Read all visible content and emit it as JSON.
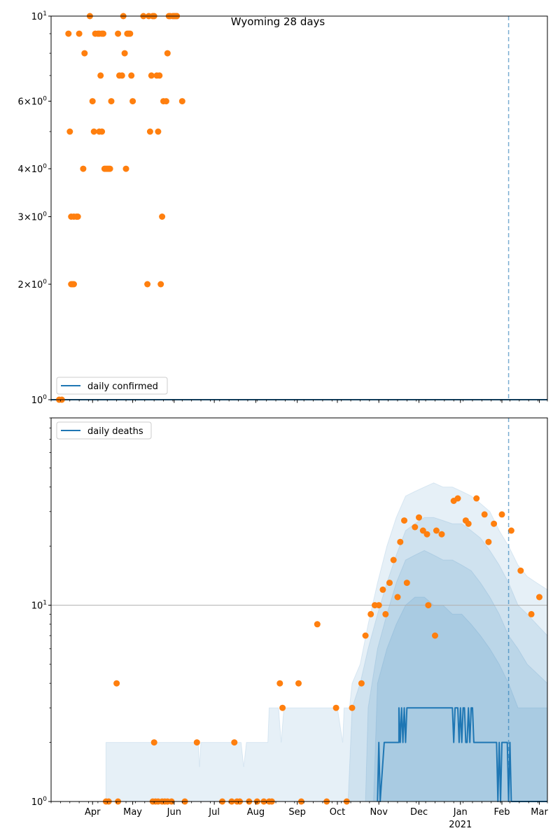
{
  "title": "Wyoming 28 days",
  "colors": {
    "line": "#1f77b4",
    "dots": "#ff7f0e",
    "band": "#1f77b4",
    "vline": "#1f77b4",
    "hline": "#b0b0b0"
  },
  "chart_data": [
    {
      "type": "scatter",
      "name": "top-panel",
      "yscale": "log",
      "ylim": [
        1,
        10
      ],
      "xlim": [
        "2020-03-01",
        "2021-03-07"
      ],
      "ytick_values": [
        1,
        2,
        3,
        4,
        6,
        10
      ],
      "ytick_labels": [
        "10^0",
        "2×10^0",
        "3×10^0",
        "4×10^0",
        "6×10^0",
        "10^1"
      ],
      "legend": {
        "label": "daily confirmed",
        "loc": "lower-left"
      },
      "vline_date": "2021-02-06",
      "line": [
        [
          "2020-03-01",
          1
        ],
        [
          "2021-03-07",
          1
        ]
      ],
      "points": [
        [
          "2020-03-07",
          1
        ],
        [
          "2020-03-09",
          1
        ],
        [
          "2020-03-14",
          9
        ],
        [
          "2020-03-15",
          5
        ],
        [
          "2020-03-16",
          2
        ],
        [
          "2020-03-16",
          3
        ],
        [
          "2020-03-17",
          2
        ],
        [
          "2020-03-18",
          3
        ],
        [
          "2020-03-18",
          2
        ],
        [
          "2020-03-20",
          3
        ],
        [
          "2020-03-21",
          3
        ],
        [
          "2020-03-22",
          9
        ],
        [
          "2020-03-25",
          4
        ],
        [
          "2020-03-26",
          8
        ],
        [
          "2020-03-30",
          10
        ],
        [
          "2020-04-01",
          6
        ],
        [
          "2020-04-02",
          5
        ],
        [
          "2020-04-03",
          9
        ],
        [
          "2020-04-05",
          9
        ],
        [
          "2020-04-06",
          5
        ],
        [
          "2020-04-06",
          9
        ],
        [
          "2020-04-07",
          7
        ],
        [
          "2020-04-08",
          5
        ],
        [
          "2020-04-08",
          9
        ],
        [
          "2020-04-09",
          9
        ],
        [
          "2020-04-10",
          4
        ],
        [
          "2020-04-11",
          4
        ],
        [
          "2020-04-12",
          4
        ],
        [
          "2020-04-13",
          4
        ],
        [
          "2020-04-14",
          4
        ],
        [
          "2020-04-15",
          6
        ],
        [
          "2020-04-20",
          9
        ],
        [
          "2020-04-21",
          7
        ],
        [
          "2020-04-23",
          7
        ],
        [
          "2020-04-24",
          10
        ],
        [
          "2020-04-25",
          8
        ],
        [
          "2020-04-26",
          4
        ],
        [
          "2020-04-27",
          9
        ],
        [
          "2020-04-28",
          9
        ],
        [
          "2020-04-29",
          9
        ],
        [
          "2020-04-30",
          7
        ],
        [
          "2020-05-01",
          6
        ],
        [
          "2020-05-09",
          10
        ],
        [
          "2020-05-12",
          2
        ],
        [
          "2020-05-13",
          10
        ],
        [
          "2020-05-14",
          5
        ],
        [
          "2020-05-15",
          7
        ],
        [
          "2020-05-16",
          10
        ],
        [
          "2020-05-17",
          10
        ],
        [
          "2020-05-19",
          7
        ],
        [
          "2020-05-20",
          5
        ],
        [
          "2020-05-21",
          7
        ],
        [
          "2020-05-22",
          2
        ],
        [
          "2020-05-23",
          3
        ],
        [
          "2020-05-24",
          6
        ],
        [
          "2020-05-26",
          6
        ],
        [
          "2020-05-27",
          8
        ],
        [
          "2020-05-28",
          10
        ],
        [
          "2020-05-29",
          10
        ],
        [
          "2020-05-31",
          10
        ],
        [
          "2020-06-01",
          10
        ],
        [
          "2020-06-02",
          10
        ],
        [
          "2020-06-03",
          10
        ],
        [
          "2020-06-07",
          6
        ]
      ]
    },
    {
      "type": "line",
      "name": "bottom-panel",
      "yscale": "log",
      "ylim": [
        1,
        90
      ],
      "xlim": [
        "2020-03-01",
        "2021-03-07"
      ],
      "ytick_values": [
        1,
        10
      ],
      "ytick_labels": [
        "10^0",
        "10^1"
      ],
      "xtick_dates": [
        "2020-04-01",
        "2020-05-01",
        "2020-06-01",
        "2020-07-01",
        "2020-08-01",
        "2020-09-01",
        "2020-10-01",
        "2020-11-01",
        "2020-12-01",
        "2021-01-01",
        "2021-02-01",
        "2021-03-01"
      ],
      "xtick_labels": [
        "Apr",
        "May",
        "Jun",
        "Jul",
        "Aug",
        "Sep",
        "Oct",
        "Nov",
        "Dec",
        "Jan",
        "Feb",
        "Mar"
      ],
      "xtick_year_label": "2021",
      "legend": {
        "label": "daily deaths",
        "loc": "upper-left"
      },
      "vline_date": "2021-02-06",
      "hline_value": 10,
      "line": [
        [
          "2020-10-31",
          1
        ],
        [
          "2020-11-01",
          2
        ],
        [
          "2020-11-02",
          1
        ],
        [
          "2020-11-05",
          2
        ],
        [
          "2020-11-16",
          2
        ],
        [
          "2020-11-16",
          3
        ],
        [
          "2020-11-17",
          2
        ],
        [
          "2020-11-18",
          3
        ],
        [
          "2020-11-19",
          2
        ],
        [
          "2020-11-20",
          3
        ],
        [
          "2020-11-21",
          2
        ],
        [
          "2020-11-22",
          3
        ],
        [
          "2020-12-26",
          3
        ],
        [
          "2020-12-27",
          2
        ],
        [
          "2020-12-28",
          3
        ],
        [
          "2020-12-30",
          3
        ],
        [
          "2020-12-31",
          2
        ],
        [
          "2021-01-01",
          3
        ],
        [
          "2021-01-02",
          2
        ],
        [
          "2021-01-03",
          3
        ],
        [
          "2021-01-04",
          3
        ],
        [
          "2021-01-05",
          2
        ],
        [
          "2021-01-06",
          2
        ],
        [
          "2021-01-07",
          3
        ],
        [
          "2021-01-08",
          2
        ],
        [
          "2021-01-09",
          3
        ],
        [
          "2021-01-10",
          3
        ],
        [
          "2021-01-11",
          2
        ],
        [
          "2021-01-28",
          2
        ],
        [
          "2021-01-29",
          1
        ],
        [
          "2021-01-30",
          2
        ],
        [
          "2021-01-31",
          1
        ],
        [
          "2021-02-01",
          2
        ],
        [
          "2021-02-05",
          2
        ],
        [
          "2021-02-06",
          1
        ],
        [
          "2021-02-07",
          2
        ],
        [
          "2021-02-08",
          1
        ],
        [
          "2021-03-07",
          1
        ]
      ],
      "bands": [
        [
          [
            "2020-04-11",
            1
          ],
          [
            "2020-04-11",
            2
          ],
          [
            "2020-06-19",
            2
          ],
          [
            "2020-06-20",
            1.5
          ],
          [
            "2020-06-21",
            2
          ],
          [
            "2020-07-21",
            2
          ],
          [
            "2020-07-23",
            1.5
          ],
          [
            "2020-07-25",
            2
          ],
          [
            "2020-08-10",
            2
          ],
          [
            "2020-08-11",
            3
          ],
          [
            "2020-08-18",
            3
          ],
          [
            "2020-08-20",
            2
          ],
          [
            "2020-08-22",
            3
          ],
          [
            "2020-10-01",
            3
          ],
          [
            "2020-10-05",
            2
          ],
          [
            "2020-10-06",
            3
          ],
          [
            "2020-10-10",
            3
          ],
          [
            "2020-10-12",
            4
          ],
          [
            "2020-10-18",
            5
          ],
          [
            "2020-10-24",
            8
          ],
          [
            "2020-10-31",
            13
          ],
          [
            "2020-11-07",
            20
          ],
          [
            "2020-11-14",
            28
          ],
          [
            "2020-11-21",
            36
          ],
          [
            "2020-11-28",
            38
          ],
          [
            "2020-12-05",
            40
          ],
          [
            "2020-12-12",
            42
          ],
          [
            "2020-12-19",
            40
          ],
          [
            "2020-12-26",
            40
          ],
          [
            "2021-01-02",
            38
          ],
          [
            "2021-01-09",
            36
          ],
          [
            "2021-01-16",
            33
          ],
          [
            "2021-01-23",
            30
          ],
          [
            "2021-01-30",
            24
          ],
          [
            "2021-02-06",
            20
          ],
          [
            "2021-02-13",
            16
          ],
          [
            "2021-02-20",
            14
          ],
          [
            "2021-02-27",
            13
          ],
          [
            "2021-03-07",
            12
          ],
          [
            "2021-03-07",
            1
          ]
        ],
        [
          [
            "2020-10-09",
            1
          ],
          [
            "2020-10-12",
            3
          ],
          [
            "2020-10-18",
            4
          ],
          [
            "2020-10-24",
            6
          ],
          [
            "2020-10-31",
            9
          ],
          [
            "2020-11-07",
            13
          ],
          [
            "2020-11-14",
            18
          ],
          [
            "2020-11-21",
            24
          ],
          [
            "2020-11-28",
            26
          ],
          [
            "2020-12-05",
            28
          ],
          [
            "2020-12-12",
            28
          ],
          [
            "2020-12-19",
            27
          ],
          [
            "2020-12-26",
            26
          ],
          [
            "2021-01-02",
            26
          ],
          [
            "2021-01-09",
            24
          ],
          [
            "2021-01-16",
            22
          ],
          [
            "2021-01-23",
            19
          ],
          [
            "2021-01-30",
            16
          ],
          [
            "2021-02-06",
            13
          ],
          [
            "2021-02-13",
            10
          ],
          [
            "2021-02-20",
            9
          ],
          [
            "2021-02-27",
            8
          ],
          [
            "2021-03-07",
            7
          ],
          [
            "2021-03-07",
            1
          ]
        ],
        [
          [
            "2020-10-22",
            1
          ],
          [
            "2020-10-24",
            3
          ],
          [
            "2020-10-31",
            6
          ],
          [
            "2020-11-07",
            9
          ],
          [
            "2020-11-14",
            13
          ],
          [
            "2020-11-21",
            17
          ],
          [
            "2020-11-28",
            18
          ],
          [
            "2020-12-05",
            19
          ],
          [
            "2020-12-12",
            18
          ],
          [
            "2020-12-19",
            17
          ],
          [
            "2020-12-26",
            17
          ],
          [
            "2021-01-02",
            16
          ],
          [
            "2021-01-09",
            15
          ],
          [
            "2021-01-16",
            13
          ],
          [
            "2021-01-23",
            11
          ],
          [
            "2021-01-30",
            9
          ],
          [
            "2021-02-06",
            7
          ],
          [
            "2021-02-13",
            6
          ],
          [
            "2021-02-20",
            5
          ],
          [
            "2021-03-07",
            4
          ],
          [
            "2021-03-07",
            1
          ]
        ],
        [
          [
            "2020-10-28",
            1
          ],
          [
            "2020-10-31",
            4
          ],
          [
            "2020-11-07",
            6
          ],
          [
            "2020-11-14",
            8
          ],
          [
            "2020-11-21",
            10
          ],
          [
            "2020-11-28",
            11
          ],
          [
            "2020-12-05",
            11
          ],
          [
            "2020-12-12",
            10
          ],
          [
            "2020-12-19",
            10
          ],
          [
            "2020-12-26",
            9
          ],
          [
            "2021-01-02",
            9
          ],
          [
            "2021-01-09",
            8
          ],
          [
            "2021-01-16",
            7
          ],
          [
            "2021-01-23",
            6
          ],
          [
            "2021-01-30",
            5
          ],
          [
            "2021-02-06",
            4
          ],
          [
            "2021-02-13",
            3
          ],
          [
            "2021-02-20",
            3
          ],
          [
            "2021-03-07",
            3
          ],
          [
            "2021-03-07",
            1
          ]
        ]
      ],
      "points": [
        [
          "2020-04-11",
          1
        ],
        [
          "2020-04-13",
          1
        ],
        [
          "2020-04-19",
          4
        ],
        [
          "2020-04-20",
          1
        ],
        [
          "2020-05-16",
          1
        ],
        [
          "2020-05-17",
          2
        ],
        [
          "2020-05-18",
          1
        ],
        [
          "2020-05-20",
          1
        ],
        [
          "2020-05-23",
          1
        ],
        [
          "2020-05-25",
          1
        ],
        [
          "2020-05-27",
          1
        ],
        [
          "2020-05-30",
          1
        ],
        [
          "2020-06-09",
          1
        ],
        [
          "2020-06-18",
          2
        ],
        [
          "2020-07-07",
          1
        ],
        [
          "2020-07-14",
          1
        ],
        [
          "2020-07-16",
          2
        ],
        [
          "2020-07-18",
          1
        ],
        [
          "2020-07-20",
          1
        ],
        [
          "2020-07-27",
          1
        ],
        [
          "2020-08-02",
          1
        ],
        [
          "2020-08-07",
          1
        ],
        [
          "2020-08-11",
          1
        ],
        [
          "2020-08-13",
          1
        ],
        [
          "2020-08-19",
          4
        ],
        [
          "2020-08-21",
          3
        ],
        [
          "2020-09-02",
          4
        ],
        [
          "2020-09-04",
          1
        ],
        [
          "2020-09-16",
          8
        ],
        [
          "2020-09-23",
          1
        ],
        [
          "2020-09-30",
          3
        ],
        [
          "2020-10-08",
          1
        ],
        [
          "2020-10-12",
          3
        ],
        [
          "2020-10-19",
          4
        ],
        [
          "2020-10-22",
          7
        ],
        [
          "2020-10-26",
          9
        ],
        [
          "2020-10-29",
          10
        ],
        [
          "2020-11-01",
          10
        ],
        [
          "2020-11-04",
          12
        ],
        [
          "2020-11-06",
          9
        ],
        [
          "2020-11-09",
          13
        ],
        [
          "2020-11-12",
          17
        ],
        [
          "2020-11-15",
          11
        ],
        [
          "2020-11-17",
          21
        ],
        [
          "2020-11-20",
          27
        ],
        [
          "2020-11-22",
          13
        ],
        [
          "2020-11-28",
          25
        ],
        [
          "2020-12-01",
          28
        ],
        [
          "2020-12-04",
          24
        ],
        [
          "2020-12-07",
          23
        ],
        [
          "2020-12-08",
          10
        ],
        [
          "2020-12-13",
          7
        ],
        [
          "2020-12-14",
          24
        ],
        [
          "2020-12-18",
          23
        ],
        [
          "2020-12-27",
          34
        ],
        [
          "2020-12-30",
          35
        ],
        [
          "2021-01-05",
          27
        ],
        [
          "2021-01-07",
          26
        ],
        [
          "2021-01-13",
          35
        ],
        [
          "2021-01-19",
          29
        ],
        [
          "2021-01-22",
          21
        ],
        [
          "2021-01-26",
          26
        ],
        [
          "2021-02-01",
          29
        ],
        [
          "2021-02-08",
          24
        ],
        [
          "2021-02-15",
          15
        ],
        [
          "2021-02-23",
          9
        ],
        [
          "2021-03-01",
          11
        ]
      ]
    }
  ]
}
